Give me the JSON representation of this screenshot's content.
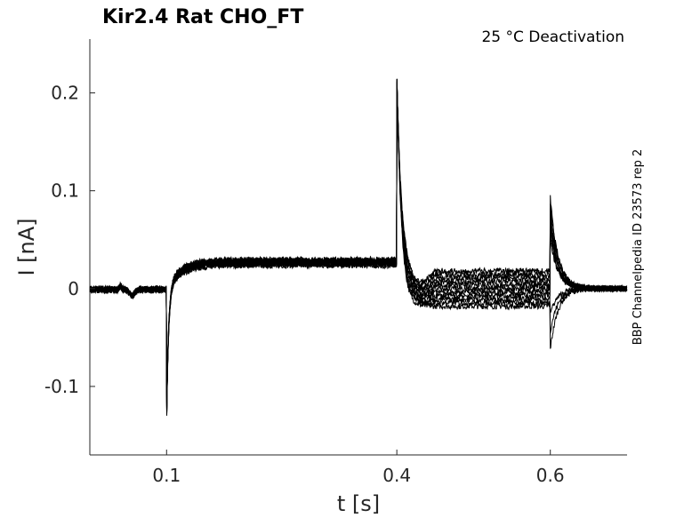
{
  "chart_data": {
    "type": "line",
    "title": "Kir2.4  Rat  CHO_FT",
    "annotation": "25 °C  Deactivation",
    "side_label": "BBP Channelpedia ID 23573 rep 2",
    "xlabel": "t [s]",
    "ylabel": "I [nA]",
    "xlim": [
      -0.0,
      0.7
    ],
    "ylim": [
      -0.17,
      0.255
    ],
    "x_ticks": [
      0.1,
      0.4,
      0.6
    ],
    "x_tick_labels": [
      "0.1",
      "0.4",
      "0.6"
    ],
    "y_ticks": [
      -0.1,
      0,
      0.1,
      0.2
    ],
    "y_tick_labels": [
      "-0.1",
      "0",
      "0.1",
      "0.2"
    ],
    "grid": false,
    "line_color": "#000000",
    "series_count": 11,
    "series_summary": {
      "sweep_level_before_0.4": 0.0,
      "holding_current": [
        0.0,
        -0.002
      ],
      "step1_start": 0.1,
      "step1_peak": -0.137,
      "step1_plateau": 0.027,
      "step2_start": 0.4,
      "step2_peak": 0.219,
      "step2_plateau_range": [
        -0.018,
        0.018
      ],
      "step3_start": 0.6,
      "step3_peak_range": [
        -0.062,
        0.093
      ],
      "final_level": 0.0
    }
  }
}
